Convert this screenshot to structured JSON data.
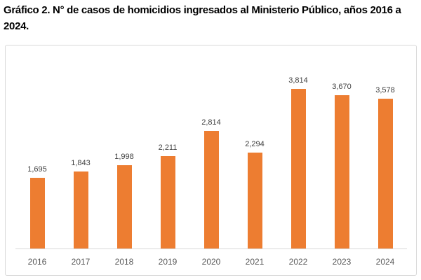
{
  "page": {
    "title": "Gráfico 2. N° de casos de homicidios ingresados al Ministerio Público, años 2016 a 2024."
  },
  "chart_data": {
    "type": "bar",
    "title": "Gráfico 2. N° de casos de homicidios ingresados al Ministerio Público, años 2016 a 2024.",
    "categories": [
      "2016",
      "2017",
      "2018",
      "2019",
      "2020",
      "2021",
      "2022",
      "2023",
      "2024"
    ],
    "values": [
      1695,
      1843,
      1998,
      2211,
      2814,
      2294,
      3814,
      3670,
      3578
    ],
    "value_labels": [
      "1,695",
      "1,843",
      "1,998",
      "2,211",
      "2,814",
      "2,294",
      "3,814",
      "3,670",
      "3,578"
    ],
    "xlabel": "",
    "ylabel": "",
    "ylim": [
      0,
      4200
    ],
    "grid": false,
    "legend": "none",
    "colors": {
      "bar": "#ED7D31",
      "value_label": "#404040",
      "tick_label": "#595959",
      "axis_line": "#d9d9d9",
      "frame_border": "#d9d9d9",
      "title": "#000000"
    }
  }
}
